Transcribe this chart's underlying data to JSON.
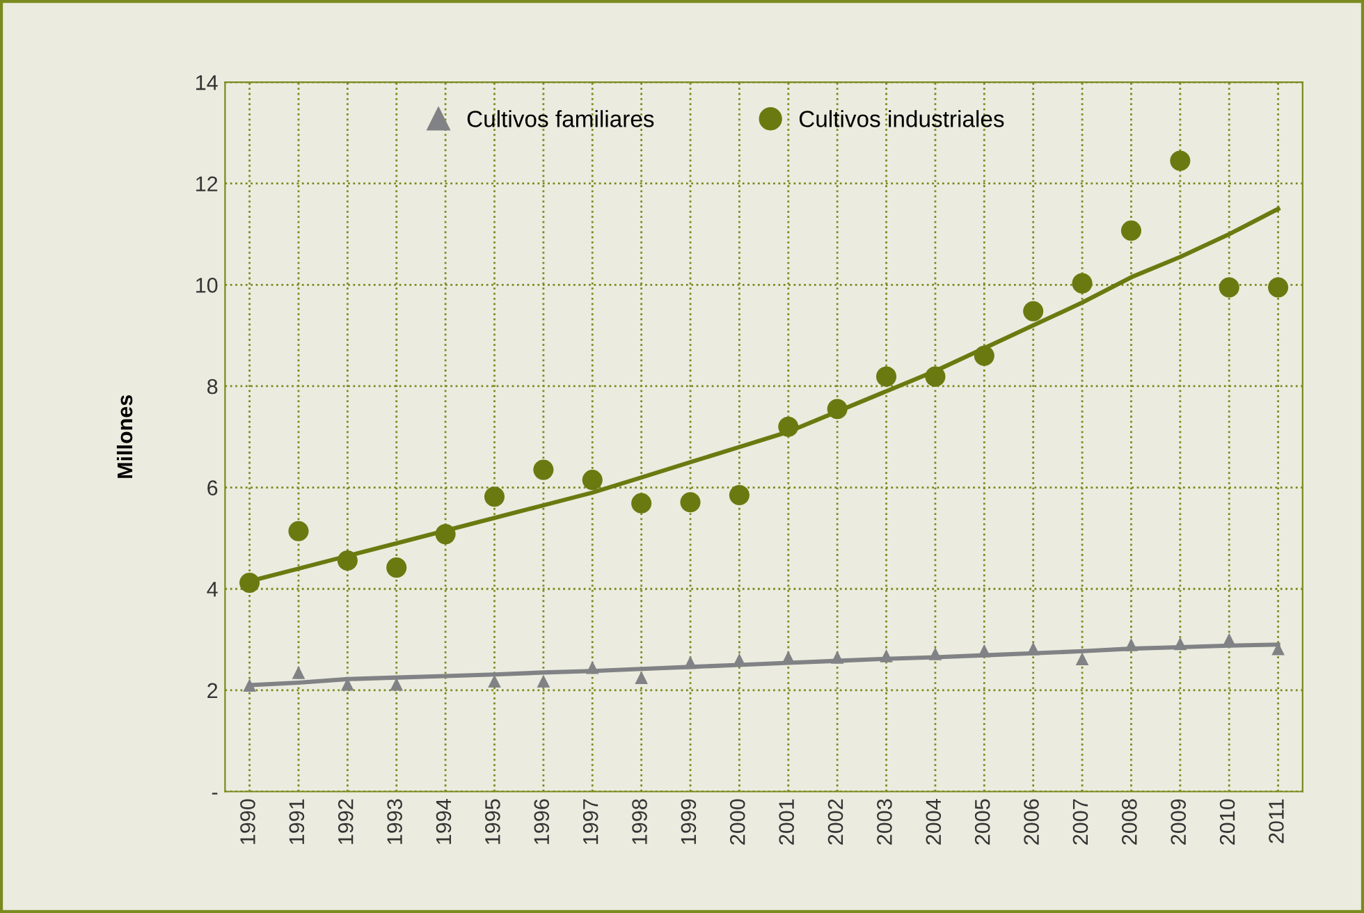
{
  "chart_data": {
    "type": "scatter",
    "ylabel": "Millones",
    "categories": [
      "1990",
      "1991",
      "1992",
      "1993",
      "1994",
      "1995",
      "1996",
      "1997",
      "1998",
      "1999",
      "2000",
      "2001",
      "2002",
      "2003",
      "2004",
      "2005",
      "2006",
      "2007",
      "2008",
      "2009",
      "2010",
      "2011"
    ],
    "series": [
      {
        "name": "Cultivos familiares",
        "marker": "triangle",
        "color": "#808285",
        "values": [
          2.1,
          2.35,
          2.12,
          2.12,
          null,
          2.18,
          2.18,
          2.45,
          2.25,
          2.55,
          2.6,
          2.65,
          2.65,
          2.68,
          2.72,
          2.78,
          2.82,
          2.62,
          2.9,
          2.92,
          3.0,
          2.82
        ]
      },
      {
        "name": "Cultivos industriales",
        "marker": "circle",
        "color": "#6b7a10",
        "values": [
          4.12,
          5.14,
          4.56,
          4.42,
          5.08,
          5.82,
          6.35,
          6.15,
          5.69,
          5.71,
          5.85,
          7.2,
          7.55,
          8.19,
          8.19,
          8.6,
          9.48,
          10.03,
          11.07,
          12.45,
          9.95,
          9.95
        ]
      },
      {
        "type": "line",
        "marker": "none",
        "color": "#808285",
        "values": [
          2.1,
          2.15,
          2.22,
          2.25,
          2.28,
          2.31,
          2.35,
          2.38,
          2.42,
          2.46,
          2.5,
          2.54,
          2.58,
          2.62,
          2.65,
          2.69,
          2.73,
          2.77,
          2.82,
          2.85,
          2.88,
          2.9
        ]
      },
      {
        "type": "line",
        "marker": "none",
        "color": "#6b7a10",
        "values": [
          4.15,
          4.4,
          4.65,
          4.9,
          5.15,
          5.4,
          5.65,
          5.9,
          6.2,
          6.5,
          6.8,
          7.1,
          7.5,
          7.9,
          8.3,
          8.75,
          9.2,
          9.65,
          10.15,
          10.55,
          11.0,
          11.5
        ]
      }
    ],
    "ylim": [
      0,
      14
    ],
    "yticks": [
      {
        "value": 0,
        "label": "-"
      },
      2,
      4,
      6,
      8,
      10,
      12,
      14
    ],
    "grid": true,
    "legend": "top"
  }
}
